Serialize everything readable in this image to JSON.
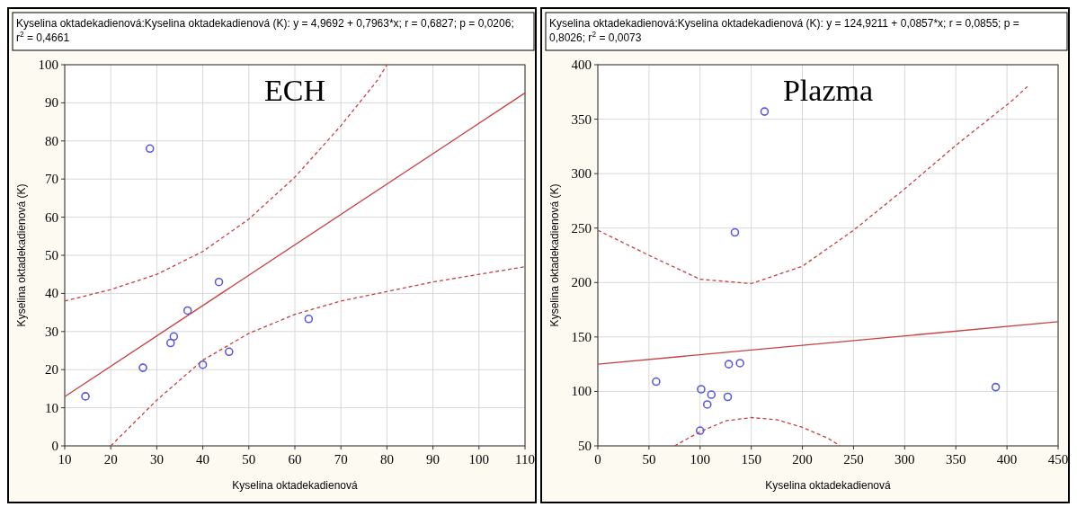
{
  "chart_data": [
    {
      "type": "scatter",
      "title": "ECH",
      "xlabel": "Kyselina oktadekadienová",
      "ylabel": "Kyselina oktadekadienová  (K)",
      "annotations": [
        "Kyselina oktadekadienová:Kyselina oktadekadienová  (K):  y = 4,9692 + 0,7963*x;  r = 0,6827; p = 0,0206; r$^{2}$ = 0,4661"
      ],
      "xlim": [
        10,
        110
      ],
      "ylim": [
        0,
        100
      ],
      "xticks": [
        10,
        20,
        30,
        40,
        50,
        60,
        70,
        80,
        90,
        100,
        110
      ],
      "yticks": [
        0,
        10,
        20,
        30,
        40,
        50,
        60,
        70,
        80,
        90,
        100
      ],
      "grid": true,
      "marker": "circle",
      "series": [
        {
          "type": "scatter",
          "color": "#5a5ad8",
          "x": [
            14.5,
            27,
            28.5,
            33,
            33.7,
            36.7,
            40,
            43.5,
            45.7,
            63
          ],
          "values": [
            13,
            20.5,
            78,
            27,
            28.7,
            35.5,
            21.3,
            43,
            24.7,
            33.3
          ]
        },
        {
          "type": "line",
          "color": "#c84040",
          "marker": "none",
          "line_style": "solid",
          "x": [
            10,
            110
          ],
          "values": [
            12.9,
            92.6
          ]
        },
        {
          "type": "line",
          "color": "#c84040",
          "marker": "none",
          "line_style": "dashed",
          "x": [
            10,
            20,
            30,
            40,
            50,
            60,
            70,
            78,
            80
          ],
          "values": [
            38,
            41,
            45,
            51,
            59.5,
            70.5,
            84,
            96,
            100
          ]
        },
        {
          "type": "line",
          "color": "#c84040",
          "marker": "none",
          "line_style": "dashed",
          "x": [
            20,
            30,
            40,
            50,
            60,
            70,
            80,
            90,
            100,
            110
          ],
          "values": [
            0,
            12,
            22.5,
            29.5,
            34.5,
            38,
            40.5,
            43,
            45,
            47
          ]
        }
      ]
    },
    {
      "type": "scatter",
      "title": "Plazma",
      "xlabel": "Kyselina oktadekadienová",
      "ylabel": "Kyselina oktadekadienová  (K)",
      "annotations": [
        "Kyselina oktadekadienová:Kyselina oktadekadienová  (K):  y = 124,9211 + 0,0857*x; r = 0,0855; p = 0,8026; r$^{2}$ = 0,0073"
      ],
      "xlim": [
        0,
        450
      ],
      "ylim": [
        50,
        400
      ],
      "xticks": [
        0,
        50,
        100,
        150,
        200,
        250,
        300,
        350,
        400,
        450
      ],
      "yticks": [
        50,
        100,
        150,
        200,
        250,
        300,
        350,
        400
      ],
      "grid": true,
      "marker": "circle",
      "series": [
        {
          "type": "scatter",
          "color": "#5a5ad8",
          "x": [
            57,
            100,
            101,
            107,
            111,
            127,
            128,
            134,
            139,
            163,
            389
          ],
          "values": [
            109,
            64,
            102,
            88,
            97,
            95,
            125,
            246,
            126,
            357,
            104
          ]
        },
        {
          "type": "line",
          "color": "#c84040",
          "marker": "none",
          "line_style": "solid",
          "x": [
            0,
            450
          ],
          "values": [
            125,
            164
          ]
        },
        {
          "type": "line",
          "color": "#c84040",
          "marker": "none",
          "line_style": "dashed",
          "x": [
            0,
            50,
            100,
            150,
            200,
            250,
            300,
            350,
            405,
            420
          ],
          "values": [
            248,
            225,
            203,
            199,
            215,
            248,
            286,
            326,
            367,
            380
          ]
        },
        {
          "type": "line",
          "color": "#c84040",
          "marker": "none",
          "line_style": "dashed",
          "x": [
            75,
            100,
            125,
            150,
            175,
            200,
            225,
            237
          ],
          "values": [
            50,
            63,
            73,
            76,
            74,
            67,
            57,
            50
          ]
        }
      ]
    }
  ]
}
